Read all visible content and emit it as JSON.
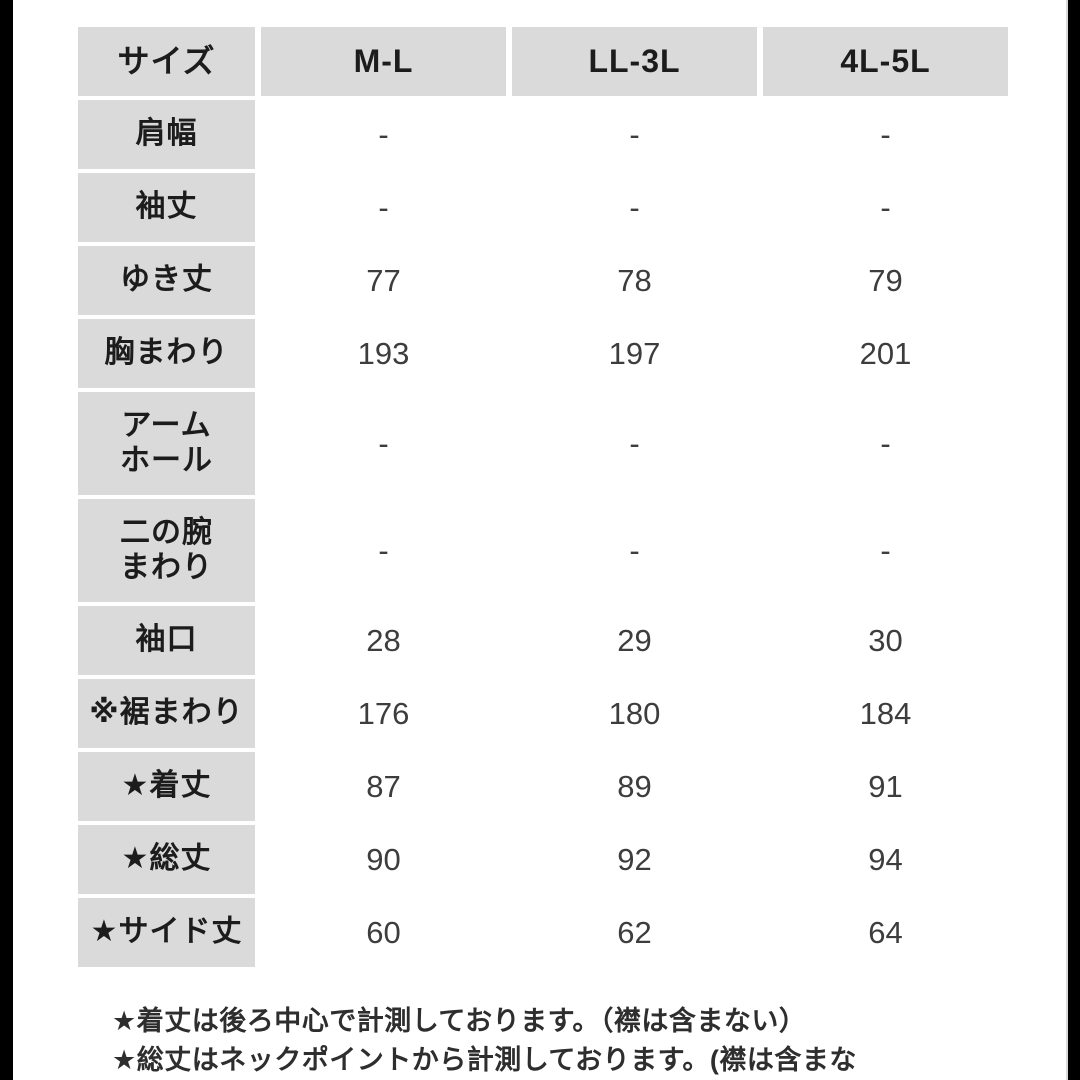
{
  "colors": {
    "cell_gray": "#dadada",
    "edge_bar": "#000000",
    "text_dark": "#1c1c1c",
    "value_text": "#3d3d3d"
  },
  "table": {
    "header": {
      "label": "サイズ",
      "columns": [
        "M-L",
        "LL-3L",
        "4L-5L"
      ]
    },
    "rows": [
      {
        "label": "肩幅",
        "values": [
          "-",
          "-",
          "-"
        ]
      },
      {
        "label": "袖丈",
        "values": [
          "-",
          "-",
          "-"
        ]
      },
      {
        "label": "ゆき丈",
        "values": [
          "77",
          "78",
          "79"
        ]
      },
      {
        "label": "胸まわり",
        "values": [
          "193",
          "197",
          "201"
        ]
      },
      {
        "label": "アーム\nホール",
        "values": [
          "-",
          "-",
          "-"
        ]
      },
      {
        "label": "二の腕\nまわり",
        "values": [
          "-",
          "-",
          "-"
        ]
      },
      {
        "label": "袖口",
        "values": [
          "28",
          "29",
          "30"
        ]
      },
      {
        "label": "※裾まわり",
        "values": [
          "176",
          "180",
          "184"
        ]
      },
      {
        "label": "★着丈",
        "values": [
          "87",
          "89",
          "91"
        ]
      },
      {
        "label": "★総丈",
        "values": [
          "90",
          "92",
          "94"
        ]
      },
      {
        "label": "★サイド丈",
        "values": [
          "60",
          "62",
          "64"
        ]
      }
    ]
  },
  "notes": {
    "line1": "★着丈は後ろ中心で計測しております。（襟は含まない）",
    "line2": "★総丈はネックポイントから計測しております。(襟は含まな"
  },
  "chart_data": {
    "type": "table",
    "columns": [
      "サイズ",
      "M-L",
      "LL-3L",
      "4L-5L"
    ],
    "rows": [
      [
        "肩幅",
        "-",
        "-",
        "-"
      ],
      [
        "袖丈",
        "-",
        "-",
        "-"
      ],
      [
        "ゆき丈",
        77,
        78,
        79
      ],
      [
        "胸まわり",
        193,
        197,
        201
      ],
      [
        "アームホール",
        "-",
        "-",
        "-"
      ],
      [
        "二の腕まわり",
        "-",
        "-",
        "-"
      ],
      [
        "袖口",
        28,
        29,
        30
      ],
      [
        "※裾まわり",
        176,
        180,
        184
      ],
      [
        "★着丈",
        87,
        89,
        91
      ],
      [
        "★総丈",
        90,
        92,
        94
      ],
      [
        "★サイド丈",
        60,
        62,
        64
      ]
    ],
    "annotations": [
      "★着丈は後ろ中心で計測しております。（襟は含まない）",
      "★総丈はネックポイントから計測しております。(襟は含まな"
    ],
    "layout": {
      "header_fill": "#dadada",
      "label_column_fill": "#dadada",
      "body_fill": "#ffffff"
    }
  }
}
